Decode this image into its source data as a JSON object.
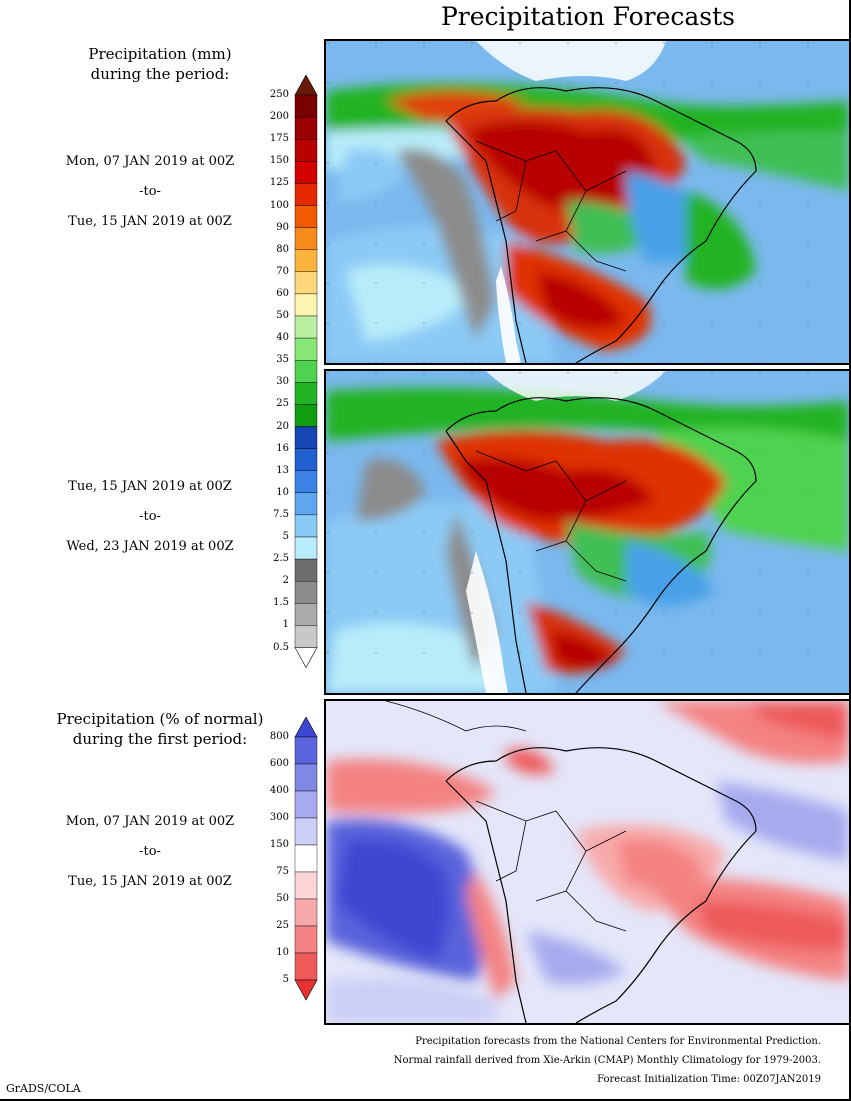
{
  "title": "Precipitation Forecasts",
  "panel1": {
    "heading_line1": "Precipitation (mm)",
    "heading_line2": "during the period:",
    "start": "Mon, 07 JAN 2019 at 00Z",
    "sep": "-to-",
    "end": "Tue, 15 JAN 2019 at 00Z"
  },
  "panel2": {
    "start": "Tue, 15 JAN 2019 at 00Z",
    "sep": "-to-",
    "end": "Wed, 23 JAN 2019 at 00Z"
  },
  "panel3": {
    "heading_line1": "Precipitation (% of normal)",
    "heading_line2": "during the first period:",
    "start": "Mon, 07 JAN 2019 at 00Z",
    "sep": "-to-",
    "end": "Tue, 15 JAN 2019 at 00Z"
  },
  "precip_colorbar": {
    "labels": [
      "250",
      "200",
      "175",
      "150",
      "125",
      "100",
      "90",
      "80",
      "70",
      "60",
      "50",
      "40",
      "35",
      "30",
      "25",
      "20",
      "16",
      "13",
      "10",
      "7.5",
      "5",
      "2.5",
      "2",
      "1.5",
      "1",
      "0.5"
    ],
    "colors": [
      "#6b1a0a",
      "#7a0000",
      "#9a0000",
      "#b80000",
      "#d40000",
      "#e62a00",
      "#f05a00",
      "#f68a1a",
      "#fab43c",
      "#fdd77a",
      "#fff5b0",
      "#b8f0a0",
      "#86e676",
      "#4fd24f",
      "#22b322",
      "#119c11",
      "#1646b4",
      "#2060d0",
      "#3a82e6",
      "#5ea6f0",
      "#8ccaf6",
      "#b8ecfa",
      "#6e6e6e",
      "#8c8c8c",
      "#aaaaaa",
      "#c8c8c8",
      "#ffffff"
    ]
  },
  "pct_colorbar": {
    "labels": [
      "800",
      "600",
      "400",
      "300",
      "150",
      "75",
      "50",
      "25",
      "10",
      "5"
    ],
    "colors": [
      "#3c46d2",
      "#5a64dc",
      "#8088e6",
      "#a6aaee",
      "#cccff6",
      "#ffffff",
      "#fcd6d6",
      "#f8aaaa",
      "#f48282",
      "#ee5a5a",
      "#e63232"
    ]
  },
  "footer": {
    "line1": "Precipitation forecasts from the National Centers for Environmental Prediction.",
    "line2": "Normal rainfall derived from Xie-Arkin (CMAP) Monthly Climatology for 1979-2003.",
    "line3": "Forecast Initialization Time: 00Z07JAN2019"
  },
  "credit": "GrADS/COLA"
}
